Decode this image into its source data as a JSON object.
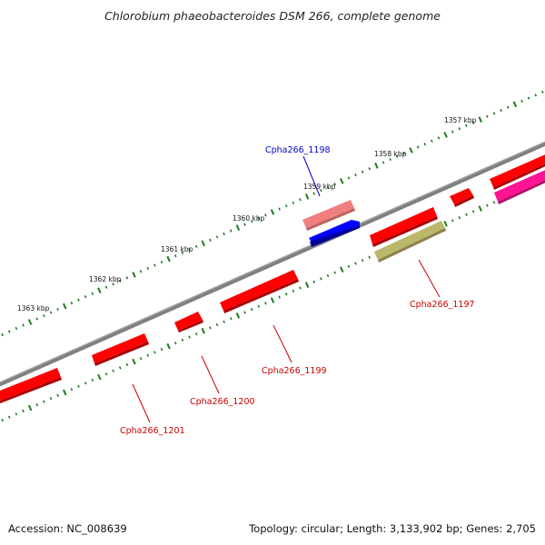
{
  "title": "Chlorobium phaeobacteroides DSM 266, complete genome",
  "footer": {
    "accession": "Accession: NC_008639",
    "summary": "Topology: circular; Length: 3,133,902 bp; Genes: 2,705"
  },
  "scale_labels": [
    "1357 kbp",
    "1358 kbp",
    "1359 kbp",
    "1360 kbp",
    "1361 kbp",
    "1362 kbp",
    "1363 kbp"
  ],
  "gene_labels": {
    "g1198": "Cpha266_1198",
    "g1197": "Cpha266_1197",
    "g1199": "Cpha266_1199",
    "g1200": "Cpha266_1200",
    "g1201": "Cpha266_1201"
  },
  "colors": {
    "backbone": "#808080",
    "tick": "#1f7a1f",
    "gene_red": "#ff0000",
    "gene_blue": "#0000ff",
    "gene_pink": "#f08080",
    "gene_olive": "#bdb76b",
    "gene_magenta": "#ff1493",
    "label_red": "#cc0000",
    "label_blue": "#0000cc"
  }
}
